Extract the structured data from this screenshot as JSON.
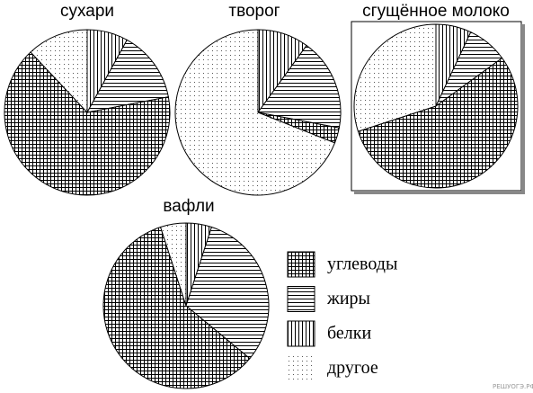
{
  "chart_data": [
    {
      "type": "pie",
      "title": "сухари",
      "categories": [
        "углеводы",
        "жиры",
        "белки",
        "другое"
      ],
      "values": [
        66,
        14,
        8,
        12
      ],
      "patterns": [
        "grid",
        "horizontal",
        "vertical",
        "dots"
      ]
    },
    {
      "type": "pie",
      "title": "творог",
      "categories": [
        "углеводы",
        "жиры",
        "белки",
        "другое"
      ],
      "values": [
        3,
        18,
        10,
        69
      ],
      "patterns": [
        "grid",
        "horizontal",
        "vertical",
        "dots"
      ]
    },
    {
      "type": "pie",
      "title": "сгущённое молоко",
      "categories": [
        "углеводы",
        "жиры",
        "белки",
        "другое"
      ],
      "values": [
        55,
        8,
        7,
        30
      ],
      "patterns": [
        "grid",
        "horizontal",
        "vertical",
        "dots"
      ]
    },
    {
      "type": "pie",
      "title": "вафли",
      "categories": [
        "углеводы",
        "жиры",
        "белки",
        "другое"
      ],
      "values": [
        59,
        31,
        5,
        5
      ],
      "patterns": [
        "grid",
        "horizontal",
        "vertical",
        "dots"
      ]
    }
  ],
  "watermark": "РЕШУОГЭ.РФ"
}
